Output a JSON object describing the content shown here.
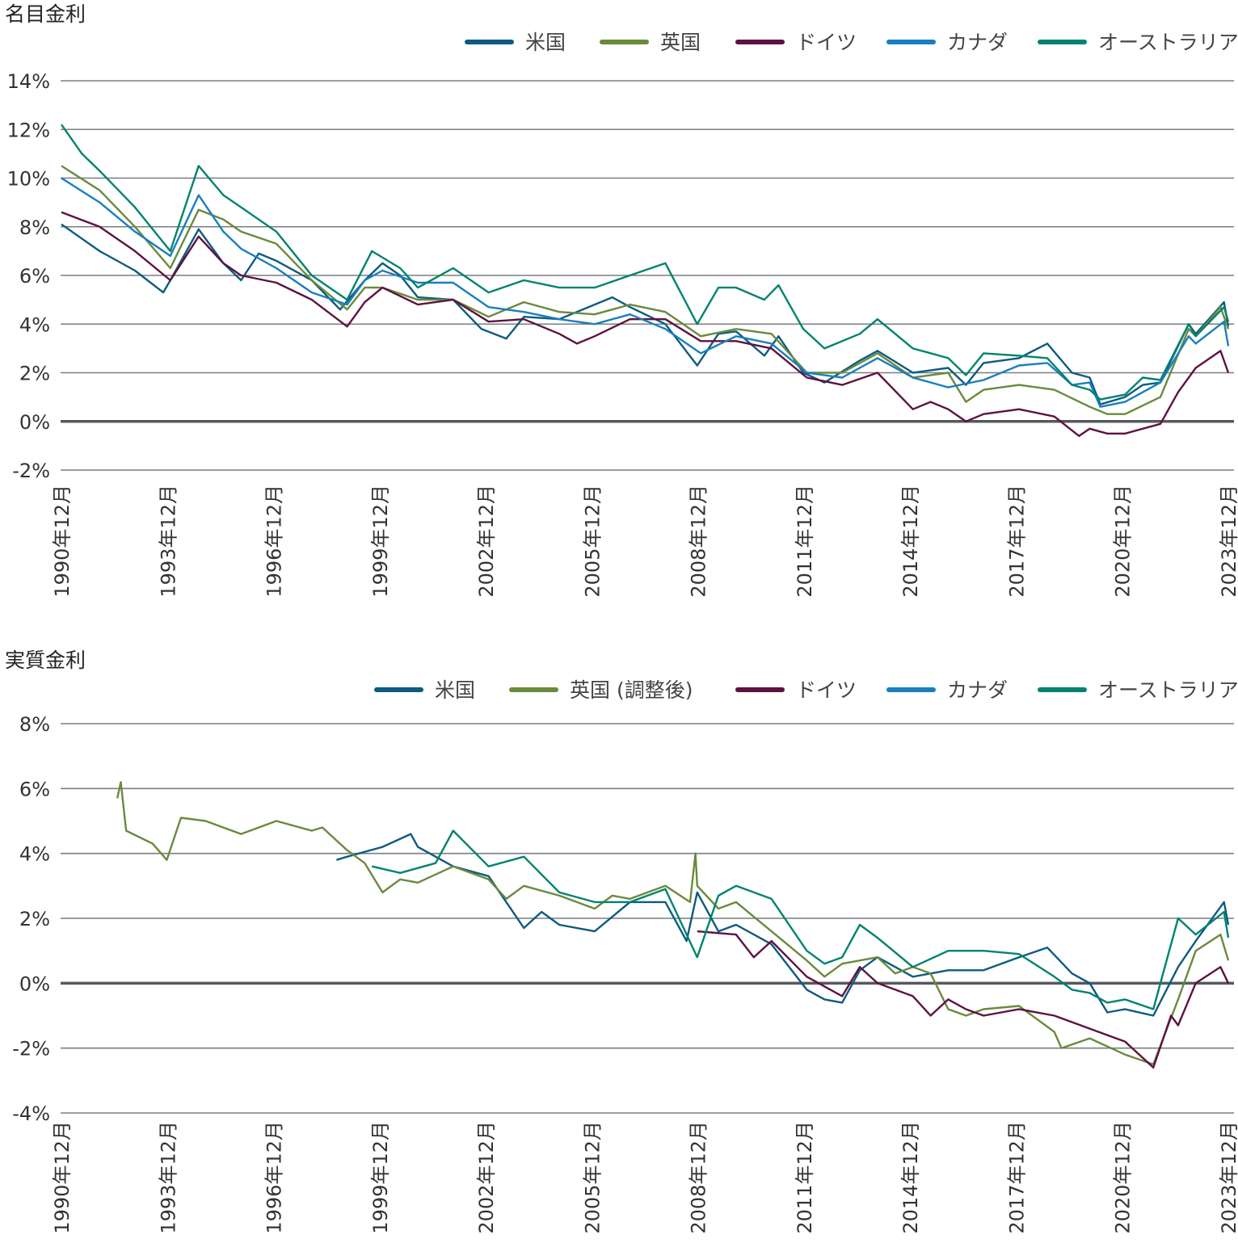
{
  "colors": {
    "us": "#0d5b80",
    "uk": "#6a8a3c",
    "de": "#5e1240",
    "ca": "#1a7fbd",
    "au": "#00836f",
    "grid": "#7a7d82",
    "zero": "#55585d"
  },
  "chart_data": [
    {
      "type": "line",
      "title": "名目金利",
      "ylim": [
        -2,
        14
      ],
      "yticks": [
        -2,
        0,
        2,
        4,
        6,
        8,
        10,
        12,
        14
      ],
      "ytick_labels": [
        "-2%",
        "0%",
        "2%",
        "4%",
        "6%",
        "8%",
        "10%",
        "12%",
        "14%"
      ],
      "xlim": [
        1990.92,
        2023.92
      ],
      "xticks": [
        1990.92,
        1993.92,
        1996.92,
        1999.92,
        2002.92,
        2005.92,
        2008.92,
        2011.92,
        2014.92,
        2017.92,
        2020.92,
        2023.92
      ],
      "xtick_labels": [
        "1990年12月",
        "1993年12月",
        "1996年12月",
        "1999年12月",
        "2002年12月",
        "2005年12月",
        "2008年12月",
        "2011年12月",
        "2014年12月",
        "2017年12月",
        "2020年12月",
        "2023年12月"
      ],
      "grid": true,
      "legend_position": "top-right",
      "series": [
        {
          "key": "us",
          "name": "米国",
          "x": [
            1990.92,
            1992,
            1993,
            1993.8,
            1994,
            1994.8,
            1995.5,
            1996,
            1996.5,
            1997,
            1998,
            1998.8,
            1999.5,
            2000,
            2000.5,
            2001,
            2002,
            2002.8,
            2003.5,
            2004,
            2005,
            2006.5,
            2007,
            2008,
            2008.9,
            2009.5,
            2010,
            2010.8,
            2011.2,
            2011.9,
            2012.5,
            2013.5,
            2014,
            2015,
            2016,
            2016.5,
            2017,
            2018,
            2018.8,
            2019.5,
            2020,
            2020.3,
            2021,
            2021.5,
            2022,
            2022.8,
            2023,
            2023.8,
            2023.92
          ],
          "y": [
            8.1,
            7.0,
            6.2,
            5.3,
            5.8,
            7.9,
            6.5,
            5.8,
            6.9,
            6.6,
            5.8,
            4.6,
            5.8,
            6.5,
            6.0,
            5.1,
            5.0,
            3.8,
            3.4,
            4.3,
            4.2,
            5.1,
            4.7,
            4.0,
            2.3,
            3.6,
            3.7,
            2.7,
            3.5,
            2.0,
            1.6,
            2.5,
            2.9,
            2.0,
            2.2,
            1.5,
            2.4,
            2.6,
            3.2,
            2.0,
            1.8,
            0.7,
            1.0,
            1.5,
            1.6,
            4.0,
            3.6,
            4.9,
            3.9
          ]
        },
        {
          "key": "uk",
          "name": "英国",
          "x": [
            1990.92,
            1992,
            1993,
            1994,
            1994.8,
            1995.5,
            1996,
            1997,
            1998,
            1999,
            1999.5,
            2000,
            2001,
            2002,
            2003,
            2004,
            2005,
            2006,
            2007,
            2008,
            2009,
            2010,
            2011,
            2012,
            2013,
            2014,
            2015,
            2016,
            2016.5,
            2017,
            2018,
            2019,
            2020,
            2020.5,
            2021,
            2022,
            2022.8,
            2023,
            2023.7,
            2023.92
          ],
          "y": [
            10.5,
            9.5,
            8.0,
            6.3,
            8.7,
            8.3,
            7.8,
            7.3,
            5.8,
            4.6,
            5.5,
            5.5,
            5.0,
            5.0,
            4.3,
            4.9,
            4.5,
            4.4,
            4.8,
            4.5,
            3.5,
            3.8,
            3.6,
            2.0,
            2.0,
            2.8,
            1.8,
            2.0,
            0.8,
            1.3,
            1.5,
            1.3,
            0.6,
            0.3,
            0.3,
            1.0,
            3.8,
            3.5,
            4.7,
            3.8
          ]
        },
        {
          "key": "de",
          "name": "ドイツ",
          "x": [
            1990.92,
            1992,
            1993,
            1994,
            1994.8,
            1995.5,
            1996,
            1997,
            1998,
            1999,
            1999.5,
            2000,
            2001,
            2002,
            2003,
            2004,
            2005,
            2005.5,
            2006,
            2007,
            2008,
            2009,
            2010,
            2011,
            2012,
            2013,
            2014,
            2015,
            2015.5,
            2016,
            2016.5,
            2017,
            2018,
            2019,
            2019.7,
            2020,
            2020.5,
            2021,
            2022,
            2022.5,
            2023,
            2023.7,
            2023.92
          ],
          "y": [
            8.6,
            8.0,
            7.0,
            5.8,
            7.6,
            6.5,
            6.0,
            5.7,
            5.0,
            3.9,
            4.9,
            5.5,
            4.8,
            5.0,
            4.1,
            4.2,
            3.6,
            3.2,
            3.5,
            4.2,
            4.2,
            3.3,
            3.3,
            3.0,
            1.8,
            1.5,
            2.0,
            0.5,
            0.8,
            0.5,
            0.0,
            0.3,
            0.5,
            0.2,
            -0.6,
            -0.3,
            -0.5,
            -0.5,
            -0.1,
            1.2,
            2.2,
            2.9,
            2.0
          ]
        },
        {
          "key": "ca",
          "name": "カナダ",
          "x": [
            1990.92,
            1992,
            1993,
            1994,
            1994.8,
            1995.5,
            1996,
            1997,
            1998,
            1999,
            1999.5,
            2000,
            2001,
            2002,
            2003,
            2004,
            2005,
            2006,
            2007,
            2008,
            2009,
            2010,
            2011,
            2012,
            2013,
            2014,
            2015,
            2016,
            2017,
            2018,
            2018.8,
            2019.5,
            2020,
            2020.3,
            2021,
            2022,
            2022.8,
            2023,
            2023.8,
            2023.92
          ],
          "y": [
            10.0,
            9.0,
            7.8,
            6.8,
            9.3,
            7.8,
            7.1,
            6.3,
            5.3,
            4.8,
            5.8,
            6.2,
            5.7,
            5.7,
            4.7,
            4.5,
            4.2,
            4.0,
            4.4,
            3.8,
            2.8,
            3.5,
            3.2,
            2.0,
            1.8,
            2.6,
            1.8,
            1.4,
            1.7,
            2.3,
            2.4,
            1.5,
            1.6,
            0.6,
            0.8,
            1.6,
            3.5,
            3.2,
            4.1,
            3.1
          ]
        },
        {
          "key": "au",
          "name": "オーストラリア",
          "x": [
            1990.92,
            1991.5,
            1992,
            1993,
            1994,
            1994.8,
            1995.5,
            1996,
            1997,
            1998,
            1999,
            1999.7,
            2000.5,
            2001,
            2002,
            2003,
            2004,
            2005,
            2006,
            2007,
            2008,
            2008.9,
            2009.5,
            2010,
            2010.8,
            2011.2,
            2011.9,
            2012.5,
            2013.5,
            2014,
            2015,
            2016,
            2016.5,
            2017,
            2018,
            2018.8,
            2019.5,
            2020,
            2020.3,
            2021,
            2021.5,
            2022,
            2022.8,
            2023,
            2023.8,
            2023.92
          ],
          "y": [
            12.2,
            11.0,
            10.3,
            8.8,
            7.0,
            10.5,
            9.3,
            8.8,
            7.8,
            6.0,
            5.0,
            7.0,
            6.3,
            5.5,
            6.3,
            5.3,
            5.8,
            5.5,
            5.5,
            6.0,
            6.5,
            4.0,
            5.5,
            5.5,
            5.0,
            5.6,
            3.8,
            3.0,
            3.6,
            4.2,
            3.0,
            2.6,
            1.9,
            2.8,
            2.7,
            2.6,
            1.5,
            1.3,
            0.9,
            1.1,
            1.8,
            1.7,
            4.0,
            3.5,
            4.7,
            4.1
          ]
        }
      ]
    },
    {
      "type": "line",
      "title": "実質金利",
      "ylim": [
        -4,
        8
      ],
      "yticks": [
        -4,
        -2,
        0,
        2,
        4,
        6,
        8
      ],
      "ytick_labels": [
        "-4%",
        "-2%",
        "0%",
        "2%",
        "4%",
        "6%",
        "8%"
      ],
      "xlim": [
        1990.92,
        2023.92
      ],
      "xticks": [
        1990.92,
        1993.92,
        1996.92,
        1999.92,
        2002.92,
        2005.92,
        2008.92,
        2011.92,
        2014.92,
        2017.92,
        2020.92,
        2023.92
      ],
      "xtick_labels": [
        "1990年12月",
        "1993年12月",
        "1996年12月",
        "1999年12月",
        "2002年12月",
        "2005年12月",
        "2008年12月",
        "2011年12月",
        "2014年12月",
        "2017年12月",
        "2020年12月",
        "2023年12月"
      ],
      "grid": true,
      "legend_position": "top-right",
      "series": [
        {
          "key": "us",
          "name": "米国",
          "x": [
            1998.7,
            1999,
            2000,
            2000.8,
            2001,
            2002,
            2003,
            2003.5,
            2004,
            2004.5,
            2005,
            2006,
            2007,
            2008,
            2008.6,
            2008.9,
            2009.5,
            2010,
            2011,
            2012,
            2012.5,
            2013,
            2013.5,
            2014,
            2015,
            2016,
            2017,
            2018,
            2018.8,
            2019.5,
            2020,
            2020.5,
            2021,
            2021.8,
            2022.5,
            2023,
            2023.8,
            2023.92
          ],
          "y": [
            3.8,
            3.9,
            4.2,
            4.6,
            4.2,
            3.6,
            3.3,
            2.5,
            1.7,
            2.2,
            1.8,
            1.6,
            2.5,
            2.5,
            1.3,
            2.8,
            1.6,
            1.8,
            1.2,
            -0.2,
            -0.5,
            -0.6,
            0.4,
            0.8,
            0.2,
            0.4,
            0.4,
            0.8,
            1.1,
            0.3,
            0.0,
            -0.9,
            -0.8,
            -1.0,
            0.5,
            1.3,
            2.5,
            1.8
          ]
        },
        {
          "key": "uk",
          "name": "英国 (調整後)",
          "x": [
            1992.5,
            1992.6,
            1992.75,
            1993.5,
            1993.9,
            1994.3,
            1995,
            1996,
            1997,
            1998,
            1998.3,
            1999,
            1999.5,
            2000,
            2000.5,
            2001,
            2002,
            2003,
            2003.5,
            2004,
            2005,
            2006,
            2006.5,
            2007,
            2008,
            2008.7,
            2008.85,
            2008.9,
            2009.5,
            2010,
            2011,
            2012,
            2012.5,
            2013,
            2014,
            2014.5,
            2015,
            2015.5,
            2016,
            2016.5,
            2017,
            2018,
            2019,
            2019.2,
            2020,
            2021,
            2021.8,
            2022.5,
            2023,
            2023.7,
            2023.92
          ],
          "y": [
            5.7,
            6.2,
            4.7,
            4.3,
            3.8,
            5.1,
            5.0,
            4.6,
            5.0,
            4.7,
            4.8,
            4.1,
            3.7,
            2.8,
            3.2,
            3.1,
            3.6,
            3.2,
            2.6,
            3.0,
            2.7,
            2.3,
            2.7,
            2.6,
            3.0,
            2.5,
            4.0,
            3.0,
            2.3,
            2.5,
            1.6,
            0.7,
            0.2,
            0.6,
            0.8,
            0.3,
            0.5,
            0.3,
            -0.8,
            -1.0,
            -0.8,
            -0.7,
            -1.5,
            -2.0,
            -1.7,
            -2.2,
            -2.5,
            -0.5,
            1.0,
            1.5,
            0.7
          ]
        },
        {
          "key": "de",
          "name": "ドイツ",
          "x": [
            2008.9,
            2010,
            2010.5,
            2011,
            2012,
            2013,
            2013.5,
            2014,
            2015,
            2015.5,
            2016,
            2016.5,
            2017,
            2018,
            2019,
            2020,
            2021,
            2021.8,
            2022.3,
            2022.5,
            2023,
            2023.7,
            2023.92
          ],
          "y": [
            1.6,
            1.5,
            0.8,
            1.3,
            0.2,
            -0.4,
            0.5,
            0.0,
            -0.4,
            -1.0,
            -0.5,
            -0.8,
            -1.0,
            -0.8,
            -1.0,
            -1.4,
            -1.8,
            -2.6,
            -1.0,
            -1.3,
            0.0,
            0.5,
            0.0
          ]
        },
        {
          "key": "ca",
          "name": "カナダ",
          "x": [],
          "y": []
        },
        {
          "key": "au",
          "name": "オーストラリア",
          "x": [
            1999.7,
            2000.5,
            2001.5,
            2002,
            2003,
            2004,
            2005,
            2006,
            2007,
            2008,
            2008.9,
            2009.5,
            2010,
            2011,
            2012,
            2012.5,
            2013,
            2013.5,
            2014,
            2015,
            2016,
            2017,
            2018,
            2019,
            2019.5,
            2020,
            2020.5,
            2021,
            2021.8,
            2022.5,
            2023,
            2023.8,
            2023.92
          ],
          "y": [
            3.6,
            3.4,
            3.7,
            4.7,
            3.6,
            3.9,
            2.8,
            2.5,
            2.5,
            2.9,
            0.8,
            2.7,
            3.0,
            2.6,
            1.0,
            0.6,
            0.8,
            1.8,
            1.4,
            0.5,
            1.0,
            1.0,
            0.9,
            0.2,
            -0.2,
            -0.3,
            -0.6,
            -0.5,
            -0.8,
            2.0,
            1.5,
            2.2,
            1.4
          ]
        }
      ]
    }
  ]
}
